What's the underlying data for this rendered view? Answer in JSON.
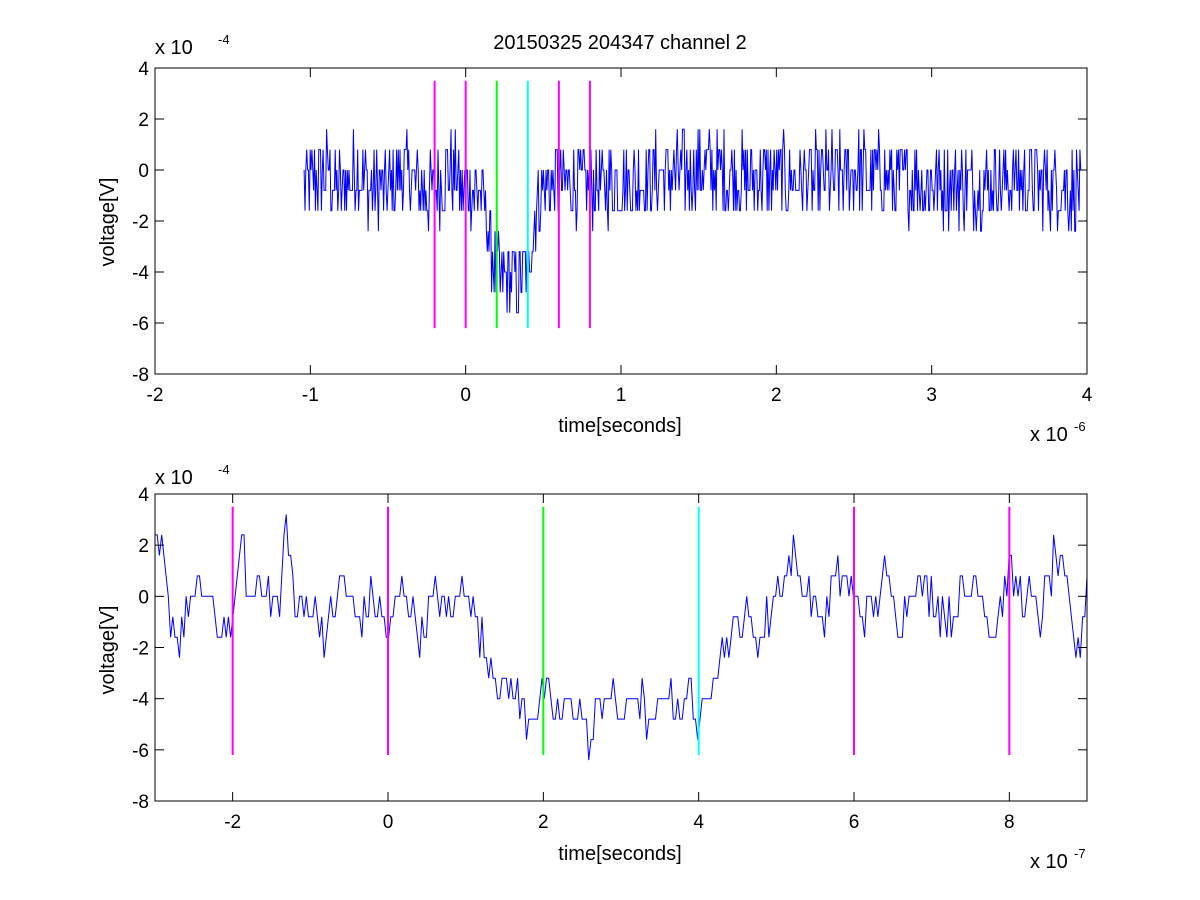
{
  "chart_data": [
    {
      "type": "line",
      "title": "20150325 204347 channel 2",
      "xlabel": "time[seconds]",
      "ylabel": "voltage[V]",
      "x_multiplier": "x 10",
      "x_exponent": "-6",
      "y_multiplier": "x 10",
      "y_exponent": "-4",
      "xlim": [
        -2,
        4
      ],
      "ylim": [
        -8,
        4
      ],
      "x_ticks": [
        "-2",
        "-1",
        "0",
        "1",
        "2",
        "3",
        "4"
      ],
      "y_ticks": [
        "4",
        "2",
        "0",
        "-2",
        "-4",
        "-6",
        "-8"
      ],
      "grid": false,
      "series": [
        {
          "color": "#0000ff",
          "x": [
            -1.04,
            -0.9,
            -0.8,
            -0.7,
            -0.6,
            -0.5,
            -0.4,
            -0.3,
            -0.2,
            -0.1,
            0.0,
            0.1,
            0.15,
            0.2,
            0.25,
            0.3,
            0.35,
            0.4,
            0.45,
            0.5,
            0.6,
            0.7,
            0.8,
            1.0,
            1.2,
            1.5,
            1.8,
            2.0,
            2.2,
            2.5,
            2.8,
            3.0,
            3.2,
            3.5,
            3.8,
            3.96
          ],
          "y": [
            -0.8,
            0.0,
            -0.8,
            0.0,
            -0.8,
            -0.8,
            0.0,
            -0.8,
            -0.8,
            0.0,
            -0.8,
            -0.8,
            -2.5,
            -4.2,
            -4.5,
            -4.2,
            -4.5,
            -4.0,
            -1.5,
            -0.8,
            -0.4,
            -0.5,
            -0.6,
            -0.5,
            -0.2,
            0.0,
            -0.3,
            -0.2,
            -0.4,
            -0.1,
            -0.4,
            -0.5,
            -0.6,
            -0.3,
            -0.6,
            -0.8
          ],
          "noise_amplitude": 1.6
        }
      ],
      "vlines": [
        {
          "x": -0.2,
          "ymin": -6.2,
          "ymax": 3.5,
          "color": "#ff00ff"
        },
        {
          "x": 0.0,
          "ymin": -6.2,
          "ymax": 3.5,
          "color": "#ff00ff"
        },
        {
          "x": 0.2,
          "ymin": -6.2,
          "ymax": 3.5,
          "color": "#00ff00"
        },
        {
          "x": 0.4,
          "ymin": -6.2,
          "ymax": 3.5,
          "color": "#00ffff"
        },
        {
          "x": 0.6,
          "ymin": -6.2,
          "ymax": 3.5,
          "color": "#ff00ff"
        },
        {
          "x": 0.8,
          "ymin": -6.2,
          "ymax": 3.5,
          "color": "#ff00ff"
        }
      ]
    },
    {
      "type": "line",
      "title": "",
      "xlabel": "time[seconds]",
      "ylabel": "voltage[V]",
      "x_multiplier": "x 10",
      "x_exponent": "-7",
      "y_multiplier": "x 10",
      "y_exponent": "-4",
      "xlim": [
        -3,
        9
      ],
      "ylim": [
        -8,
        4
      ],
      "x_ticks": [
        "-2",
        "0",
        "2",
        "4",
        "6",
        "8"
      ],
      "y_ticks": [
        "4",
        "2",
        "0",
        "-2",
        "-4",
        "-6",
        "-8"
      ],
      "grid": false,
      "series": [
        {
          "color": "#0000ff",
          "x": [
            -3.0,
            -2.9,
            -2.8,
            -2.7,
            -2.5,
            -2.3,
            -2.2,
            -2.1,
            -2.0,
            -1.9,
            -1.8,
            -1.6,
            -1.4,
            -1.3,
            -1.2,
            -1.0,
            -0.8,
            -0.6,
            -0.4,
            -0.2,
            0.0,
            0.2,
            0.4,
            0.6,
            0.8,
            1.0,
            1.2,
            1.4,
            1.5,
            1.6,
            1.8,
            2.0,
            2.2,
            2.4,
            2.6,
            2.8,
            3.0,
            3.2,
            3.4,
            3.6,
            3.8,
            3.9,
            4.0,
            4.1,
            4.2,
            4.4,
            4.6,
            4.8,
            5.0,
            5.2,
            5.4,
            5.6,
            5.8,
            6.0,
            6.2,
            6.4,
            6.6,
            6.8,
            7.0,
            7.2,
            7.4,
            7.6,
            7.8,
            8.0,
            8.2,
            8.4,
            8.6,
            8.8,
            8.9,
            9.0
          ],
          "y": [
            1.6,
            1.6,
            -0.8,
            -1.6,
            0.0,
            0.0,
            -1.6,
            -0.8,
            -1.6,
            2.4,
            0.0,
            0.8,
            -0.8,
            3.2,
            -0.8,
            0.0,
            -1.6,
            0.8,
            -0.8,
            0.0,
            -1.6,
            0.8,
            -1.6,
            0.0,
            -0.8,
            0.8,
            -1.6,
            -3.2,
            -4.0,
            -3.6,
            -4.8,
            -4.0,
            -4.8,
            -4.0,
            -5.6,
            -3.6,
            -4.8,
            -3.6,
            -5.2,
            -3.6,
            -4.8,
            -3.2,
            -5.6,
            -4.0,
            -2.4,
            -1.6,
            -0.8,
            -1.6,
            0.0,
            1.6,
            0.0,
            -0.8,
            0.8,
            0.0,
            -0.8,
            0.8,
            -0.8,
            0.8,
            0.0,
            -0.8,
            0.0,
            0.8,
            -1.6,
            0.8,
            0.0,
            -0.8,
            1.6,
            -0.8,
            -2.4,
            0.5
          ],
          "noise_amplitude": 0.8
        }
      ],
      "vlines": [
        {
          "x": -2.0,
          "ymin": -6.2,
          "ymax": 3.5,
          "color": "#ff00ff"
        },
        {
          "x": 0.0,
          "ymin": -6.2,
          "ymax": 3.5,
          "color": "#ff00ff"
        },
        {
          "x": 2.0,
          "ymin": -6.2,
          "ymax": 3.5,
          "color": "#00ff00"
        },
        {
          "x": 4.0,
          "ymin": -6.2,
          "ymax": 3.5,
          "color": "#00ffff"
        },
        {
          "x": 6.0,
          "ymin": -6.2,
          "ymax": 3.5,
          "color": "#ff00ff"
        },
        {
          "x": 8.0,
          "ymin": -6.2,
          "ymax": 3.5,
          "color": "#ff00ff"
        }
      ]
    }
  ]
}
